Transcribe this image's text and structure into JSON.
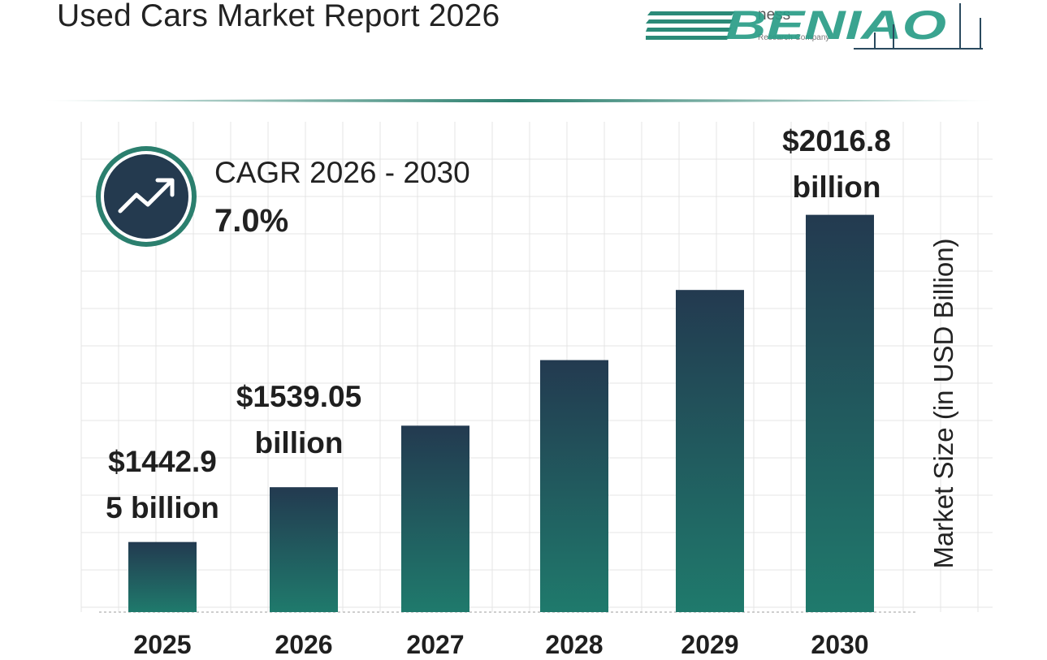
{
  "header": {
    "title": "Used Cars Market Report 2026",
    "logo_text": "BENIAO",
    "logo_tagline": "The Business Research Company"
  },
  "colors": {
    "bar_top": "#233a50",
    "bar_bottom": "#1f7a6c",
    "accent_teal": "#2b7f6e",
    "navy": "#243a4f",
    "grid": "#e4e4e4"
  },
  "cagr": {
    "label": "CAGR 2026 - 2030",
    "value": "7.0%",
    "icon": "trend-up-icon"
  },
  "chart_data": {
    "type": "bar",
    "title": "Used Cars Market Report 2026",
    "categories": [
      "2025",
      "2026",
      "2027",
      "2028",
      "2029",
      "2030"
    ],
    "values": [
      1442.95,
      1539.05,
      1647,
      1762,
      1885,
      2016.8
    ],
    "data_labels": [
      "$1442.9\n5 billion",
      "$1539.05\nbillion",
      "",
      "",
      "",
      "$2016.8\nbillion"
    ],
    "xlabel": "",
    "ylabel": "Market Size (in USD Billion)",
    "ylim": [
      1320,
      2180
    ],
    "grid": true
  }
}
